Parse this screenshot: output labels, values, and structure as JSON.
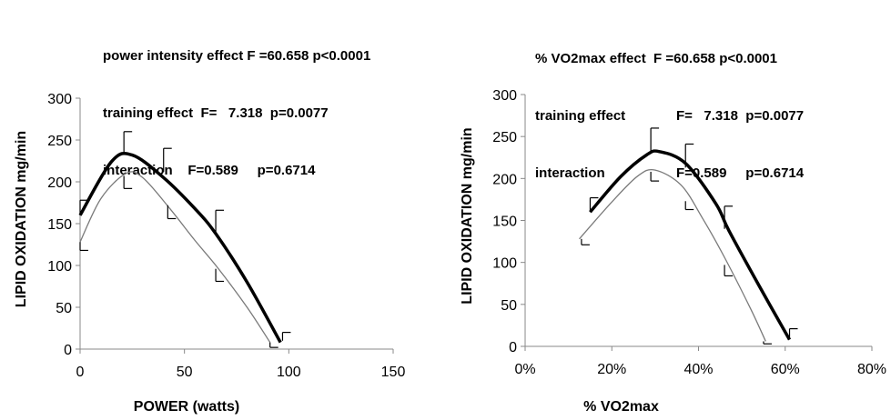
{
  "left_stats": [
    [
      "power intensity effect F =60.658 p<0.0001"
    ],
    [
      "training effect  F=   7.318  p=0.0077"
    ],
    [
      "interaction    F=0.589     p=0.6714"
    ]
  ],
  "right_stats": [
    [
      "% VO2max effect  F =60.658 p<0.0001"
    ],
    [
      "training effect",
      "F=   7.318  p=0.0077"
    ],
    [
      "interaction",
      "F=0.589     p=0.6714"
    ]
  ],
  "chart_data": [
    {
      "type": "line",
      "xlabel": "POWER (watts)",
      "ylabel": "LIPID OXIDATION  mg/min",
      "xlim": [
        0,
        150
      ],
      "ylim": [
        0,
        300
      ],
      "xticks": [
        "0",
        "50",
        "100",
        "150"
      ],
      "yticks": [
        "0",
        "50",
        "100",
        "150",
        "200",
        "250",
        "300"
      ],
      "grid": false,
      "series": [
        {
          "style": "thick",
          "points": [
            [
              0,
              160
            ],
            [
              15,
              224
            ],
            [
              25,
              232
            ],
            [
              40,
              205
            ],
            [
              55,
              168
            ],
            [
              65,
              138
            ],
            [
              80,
              80
            ],
            [
              96,
              8
            ]
          ],
          "error_bars": [
            [
              0,
              160,
              18
            ],
            [
              21,
              232,
              28
            ],
            [
              40,
              212,
              28
            ],
            [
              65,
              140,
              26
            ],
            [
              97,
              10,
              10
            ]
          ]
        },
        {
          "style": "thin",
          "points": [
            [
              0,
              128
            ],
            [
              10,
              180
            ],
            [
              22,
              210
            ],
            [
              30,
              205
            ],
            [
              43,
              168
            ],
            [
              55,
              130
            ],
            [
              66,
              97
            ],
            [
              80,
              50
            ],
            [
              91,
              8
            ]
          ],
          "error_bars": [
            [
              0,
              128,
              -10
            ],
            [
              21,
              207,
              -15
            ],
            [
              42,
              172,
              -16
            ],
            [
              65,
              96,
              -15
            ],
            [
              91,
              8,
              -6
            ]
          ]
        }
      ]
    },
    {
      "type": "line",
      "xlabel": "% VO2max",
      "ylabel": "LIPID OXIDATION  mg/min",
      "xlim": [
        0,
        80
      ],
      "ylim": [
        0,
        300
      ],
      "xticks": [
        "0%",
        "20%",
        "40%",
        "60%",
        "80%"
      ],
      "yticks": [
        "0",
        "50",
        "100",
        "150",
        "200",
        "250",
        "300"
      ],
      "grid": false,
      "series": [
        {
          "style": "thick",
          "points": [
            [
              15,
              160
            ],
            [
              22,
              202
            ],
            [
              28,
              228
            ],
            [
              31,
              232
            ],
            [
              37,
              218
            ],
            [
              44,
              170
            ],
            [
              47,
              138
            ],
            [
              54,
              72
            ],
            [
              61,
              8
            ]
          ],
          "error_bars": [
            [
              15,
              160,
              17
            ],
            [
              29,
              232,
              28
            ],
            [
              37,
              213,
              28
            ],
            [
              46,
              140,
              27
            ],
            [
              61,
              9,
              12
            ]
          ]
        },
        {
          "style": "thin",
          "points": [
            [
              12.5,
              128
            ],
            [
              20,
              172
            ],
            [
              26,
              203
            ],
            [
              30,
              210
            ],
            [
              36,
              192
            ],
            [
              41,
              152
            ],
            [
              46,
              106
            ],
            [
              52,
              45
            ],
            [
              55.5,
              6
            ]
          ],
          "error_bars": [
            [
              13,
              128,
              -7
            ],
            [
              29,
              208,
              -11
            ],
            [
              37,
              173,
              -10
            ],
            [
              46,
              97,
              -13
            ],
            [
              55,
              6,
              -3
            ]
          ]
        }
      ]
    }
  ]
}
